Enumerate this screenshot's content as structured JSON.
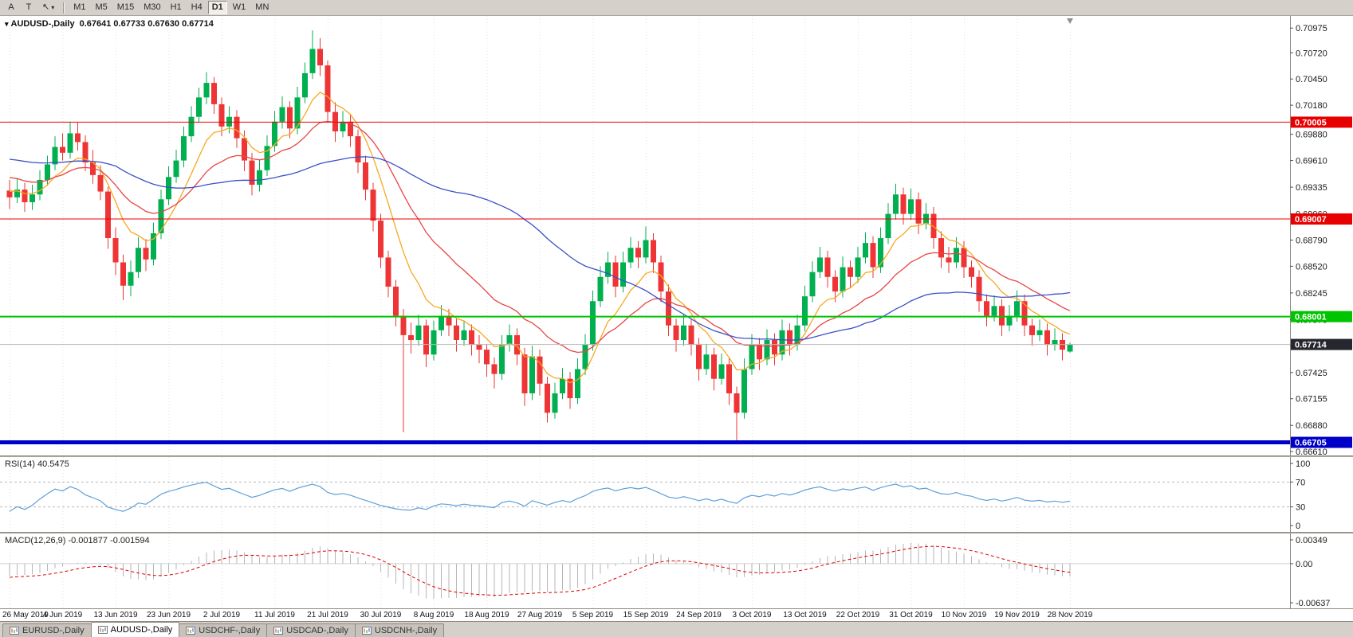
{
  "toolbar": {
    "system_buttons": [
      "A",
      "T"
    ],
    "draw_tool_icon": "↖",
    "dropdown_icon": "▾",
    "timeframes": [
      "M1",
      "M5",
      "M15",
      "M30",
      "H1",
      "H4",
      "D1",
      "W1",
      "MN"
    ],
    "active_timeframe": "D1"
  },
  "chart": {
    "marker_icon": "▾",
    "symbol_label": "AUDUSD-,Daily",
    "quote": "0.67641 0.67733 0.67630 0.67714",
    "shift_marker_icon": "▼"
  },
  "chart_data": {
    "type": "candlestick",
    "symbol": "AUDUSD",
    "timeframe": "Daily",
    "x_tick_every": 7,
    "x_labels": [
      "26 May 2019",
      "4 Jun 2019",
      "13 Jun 2019",
      "23 Jun 2019",
      "2 Jul 2019",
      "11 Jul 2019",
      "21 Jul 2019",
      "30 Jul 2019",
      "8 Aug 2019",
      "18 Aug 2019",
      "27 Aug 2019",
      "5 Sep 2019",
      "15 Sep 2019",
      "24 Sep 2019",
      "3 Oct 2019",
      "13 Oct 2019",
      "22 Oct 2019",
      "31 Oct 2019",
      "10 Nov 2019",
      "19 Nov 2019",
      "28 Nov 2019"
    ],
    "y_range": {
      "top": 0.711,
      "bottom": 0.6657
    },
    "price_axis_labels": [
      "0.70975",
      "0.70720",
      "0.70450",
      "0.70180",
      "0.69880",
      "0.69610",
      "0.69335",
      "0.69060",
      "0.68790",
      "0.68520",
      "0.68245",
      "0.67970",
      "0.67700",
      "0.67425",
      "0.67155",
      "0.66880",
      "0.66610"
    ],
    "up_color": "#00b050",
    "down_color": "#ee3434",
    "grid_color": "#e2e2e2",
    "background": "#ffffff",
    "pre_history_closes": [
      0.7042,
      0.7035,
      0.7028,
      0.7021,
      0.7015,
      0.7008,
      0.7001,
      0.6993,
      0.6986,
      0.698,
      0.6973,
      0.6966,
      0.6959,
      0.6951,
      0.6946,
      0.6952,
      0.6948,
      0.6941,
      0.6936,
      0.6931,
      0.6938,
      0.6931,
      0.6926,
      0.6921,
      0.6928,
      0.6935,
      0.6931,
      0.6927,
      0.6931,
      0.6929
    ],
    "candles": [
      [
        0.693,
        0.6941,
        0.6911,
        0.6923
      ],
      [
        0.6923,
        0.6943,
        0.6917,
        0.6931
      ],
      [
        0.6931,
        0.6938,
        0.6908,
        0.6918
      ],
      [
        0.6918,
        0.6936,
        0.691,
        0.6926
      ],
      [
        0.6926,
        0.6951,
        0.692,
        0.6941
      ],
      [
        0.6941,
        0.6966,
        0.6935,
        0.6957
      ],
      [
        0.6957,
        0.6986,
        0.6951,
        0.6975
      ],
      [
        0.6975,
        0.6989,
        0.6961,
        0.6969
      ],
      [
        0.6969,
        0.7001,
        0.6963,
        0.6989
      ],
      [
        0.6989,
        0.7,
        0.6971,
        0.698
      ],
      [
        0.698,
        0.6987,
        0.695,
        0.6959
      ],
      [
        0.6959,
        0.6972,
        0.6937,
        0.6946
      ],
      [
        0.6946,
        0.6956,
        0.692,
        0.6929
      ],
      [
        0.6929,
        0.6934,
        0.687,
        0.6881
      ],
      [
        0.6881,
        0.6892,
        0.6843,
        0.6856
      ],
      [
        0.6856,
        0.6864,
        0.6817,
        0.6832
      ],
      [
        0.6832,
        0.6858,
        0.6821,
        0.6846
      ],
      [
        0.6846,
        0.6882,
        0.684,
        0.6871
      ],
      [
        0.6871,
        0.688,
        0.6847,
        0.6859
      ],
      [
        0.6859,
        0.6897,
        0.6853,
        0.6886
      ],
      [
        0.6886,
        0.6931,
        0.688,
        0.6921
      ],
      [
        0.6921,
        0.6955,
        0.6915,
        0.6944
      ],
      [
        0.6944,
        0.6972,
        0.6938,
        0.6961
      ],
      [
        0.6961,
        0.6996,
        0.6954,
        0.6986
      ],
      [
        0.6986,
        0.7017,
        0.698,
        0.7006
      ],
      [
        0.7006,
        0.7036,
        0.7,
        0.7026
      ],
      [
        0.7026,
        0.7052,
        0.7019,
        0.7041
      ],
      [
        0.7041,
        0.7047,
        0.7009,
        0.7019
      ],
      [
        0.7019,
        0.7026,
        0.6986,
        0.6996
      ],
      [
        0.6996,
        0.7017,
        0.6989,
        0.7006
      ],
      [
        0.7006,
        0.7013,
        0.6974,
        0.6984
      ],
      [
        0.6984,
        0.6992,
        0.695,
        0.6961
      ],
      [
        0.6961,
        0.6969,
        0.6925,
        0.6936
      ],
      [
        0.6936,
        0.6962,
        0.6929,
        0.6951
      ],
      [
        0.6951,
        0.6987,
        0.6945,
        0.6976
      ],
      [
        0.6976,
        0.7012,
        0.697,
        0.7001
      ],
      [
        0.7001,
        0.7027,
        0.6994,
        0.7016
      ],
      [
        0.7016,
        0.7022,
        0.6984,
        0.6994
      ],
      [
        0.6994,
        0.7037,
        0.6988,
        0.7026
      ],
      [
        0.7026,
        0.7062,
        0.702,
        0.7051
      ],
      [
        0.7051,
        0.7095,
        0.7045,
        0.7076
      ],
      [
        0.7076,
        0.7087,
        0.7048,
        0.7059
      ],
      [
        0.7059,
        0.7064,
        0.7,
        0.7011
      ],
      [
        0.7011,
        0.7021,
        0.698,
        0.6991
      ],
      [
        0.6991,
        0.7012,
        0.6985,
        0.7001
      ],
      [
        0.7001,
        0.7008,
        0.6975,
        0.6986
      ],
      [
        0.6986,
        0.6993,
        0.6948,
        0.6959
      ],
      [
        0.6959,
        0.6966,
        0.692,
        0.6931
      ],
      [
        0.6931,
        0.6938,
        0.6888,
        0.6899
      ],
      [
        0.6899,
        0.6906,
        0.685,
        0.6861
      ],
      [
        0.6861,
        0.6868,
        0.682,
        0.6831
      ],
      [
        0.6831,
        0.6838,
        0.679,
        0.6801
      ],
      [
        0.6801,
        0.6808,
        0.6681,
        0.6781
      ],
      [
        0.6781,
        0.6794,
        0.6762,
        0.6776
      ],
      [
        0.6776,
        0.6802,
        0.677,
        0.6791
      ],
      [
        0.6791,
        0.6797,
        0.6748,
        0.6761
      ],
      [
        0.6761,
        0.6796,
        0.6755,
        0.6786
      ],
      [
        0.6786,
        0.6812,
        0.678,
        0.6801
      ],
      [
        0.6801,
        0.6808,
        0.678,
        0.6791
      ],
      [
        0.6791,
        0.6798,
        0.6764,
        0.6776
      ],
      [
        0.6776,
        0.6796,
        0.677,
        0.6786
      ],
      [
        0.6786,
        0.6792,
        0.676,
        0.6771
      ],
      [
        0.6771,
        0.6781,
        0.6752,
        0.6766
      ],
      [
        0.6766,
        0.6772,
        0.6738,
        0.6751
      ],
      [
        0.6751,
        0.6758,
        0.6726,
        0.6741
      ],
      [
        0.6741,
        0.6781,
        0.6735,
        0.6771
      ],
      [
        0.6771,
        0.6792,
        0.6764,
        0.6781
      ],
      [
        0.6781,
        0.6788,
        0.675,
        0.6761
      ],
      [
        0.6761,
        0.6768,
        0.6708,
        0.6721
      ],
      [
        0.6721,
        0.677,
        0.6714,
        0.6759
      ],
      [
        0.6759,
        0.6766,
        0.6719,
        0.6731
      ],
      [
        0.6731,
        0.6738,
        0.6691,
        0.6701
      ],
      [
        0.6701,
        0.6732,
        0.6695,
        0.6721
      ],
      [
        0.6721,
        0.6747,
        0.6715,
        0.6736
      ],
      [
        0.6736,
        0.6743,
        0.6705,
        0.6716
      ],
      [
        0.6716,
        0.6757,
        0.671,
        0.6746
      ],
      [
        0.6746,
        0.6782,
        0.674,
        0.6771
      ],
      [
        0.6771,
        0.6827,
        0.6765,
        0.6816
      ],
      [
        0.6816,
        0.6852,
        0.681,
        0.6841
      ],
      [
        0.6841,
        0.6867,
        0.6834,
        0.6856
      ],
      [
        0.6856,
        0.6863,
        0.682,
        0.6831
      ],
      [
        0.6831,
        0.6867,
        0.6825,
        0.6856
      ],
      [
        0.6856,
        0.6882,
        0.685,
        0.6871
      ],
      [
        0.6871,
        0.6878,
        0.685,
        0.6861
      ],
      [
        0.6861,
        0.6893,
        0.6855,
        0.6879
      ],
      [
        0.6879,
        0.6886,
        0.6845,
        0.6856
      ],
      [
        0.6856,
        0.6863,
        0.6815,
        0.6826
      ],
      [
        0.6826,
        0.6833,
        0.678,
        0.6791
      ],
      [
        0.6791,
        0.6798,
        0.6764,
        0.6776
      ],
      [
        0.6776,
        0.6802,
        0.677,
        0.6791
      ],
      [
        0.6791,
        0.6798,
        0.676,
        0.6771
      ],
      [
        0.6771,
        0.6778,
        0.6734,
        0.6746
      ],
      [
        0.6746,
        0.6772,
        0.674,
        0.6761
      ],
      [
        0.6761,
        0.6768,
        0.6724,
        0.6736
      ],
      [
        0.6736,
        0.6762,
        0.673,
        0.6751
      ],
      [
        0.6751,
        0.6758,
        0.6709,
        0.6721
      ],
      [
        0.6721,
        0.6728,
        0.66705,
        0.6701
      ],
      [
        0.6701,
        0.6757,
        0.6695,
        0.6746
      ],
      [
        0.6746,
        0.6782,
        0.674,
        0.6771
      ],
      [
        0.6771,
        0.6778,
        0.6745,
        0.6756
      ],
      [
        0.6756,
        0.6787,
        0.675,
        0.6776
      ],
      [
        0.6776,
        0.6783,
        0.675,
        0.6761
      ],
      [
        0.6761,
        0.6797,
        0.6755,
        0.6786
      ],
      [
        0.6786,
        0.6793,
        0.676,
        0.6771
      ],
      [
        0.6771,
        0.6802,
        0.6765,
        0.6791
      ],
      [
        0.6791,
        0.6832,
        0.6785,
        0.6821
      ],
      [
        0.6821,
        0.6857,
        0.6815,
        0.6846
      ],
      [
        0.6846,
        0.6872,
        0.684,
        0.6861
      ],
      [
        0.6861,
        0.6868,
        0.683,
        0.6841
      ],
      [
        0.6841,
        0.6848,
        0.6815,
        0.6826
      ],
      [
        0.6826,
        0.6862,
        0.682,
        0.6851
      ],
      [
        0.6851,
        0.6858,
        0.683,
        0.6841
      ],
      [
        0.6841,
        0.6872,
        0.6835,
        0.6861
      ],
      [
        0.6861,
        0.6887,
        0.6855,
        0.6876
      ],
      [
        0.6876,
        0.6883,
        0.684,
        0.6851
      ],
      [
        0.6851,
        0.6892,
        0.6845,
        0.6881
      ],
      [
        0.6881,
        0.6917,
        0.6875,
        0.6906
      ],
      [
        0.6906,
        0.6937,
        0.69,
        0.6926
      ],
      [
        0.6926,
        0.6933,
        0.6895,
        0.6906
      ],
      [
        0.6906,
        0.6932,
        0.69,
        0.6921
      ],
      [
        0.6921,
        0.6928,
        0.6885,
        0.6896
      ],
      [
        0.6896,
        0.6917,
        0.689,
        0.6906
      ],
      [
        0.6906,
        0.6913,
        0.687,
        0.6881
      ],
      [
        0.6881,
        0.6888,
        0.685,
        0.6861
      ],
      [
        0.6861,
        0.6872,
        0.6845,
        0.6856
      ],
      [
        0.6856,
        0.6882,
        0.685,
        0.6871
      ],
      [
        0.6871,
        0.6878,
        0.684,
        0.6851
      ],
      [
        0.6851,
        0.6858,
        0.683,
        0.6841
      ],
      [
        0.6841,
        0.6848,
        0.6805,
        0.6816
      ],
      [
        0.6816,
        0.6823,
        0.679,
        0.6801
      ],
      [
        0.6801,
        0.6822,
        0.6795,
        0.6811
      ],
      [
        0.6811,
        0.6818,
        0.678,
        0.6791
      ],
      [
        0.6791,
        0.6812,
        0.6785,
        0.6801
      ],
      [
        0.6801,
        0.6827,
        0.6795,
        0.6816
      ],
      [
        0.6816,
        0.6823,
        0.678,
        0.6791
      ],
      [
        0.6791,
        0.6798,
        0.677,
        0.6781
      ],
      [
        0.6781,
        0.6797,
        0.6775,
        0.6786
      ],
      [
        0.6786,
        0.6793,
        0.676,
        0.6771
      ],
      [
        0.6771,
        0.6788,
        0.6765,
        0.6776
      ],
      [
        0.6776,
        0.6783,
        0.6755,
        0.6766
      ],
      [
        0.67641,
        0.67733,
        0.6763,
        0.67714
      ]
    ],
    "moving_averages": [
      {
        "name": "fast",
        "type": "ema",
        "period": 8,
        "color": "#f6a821"
      },
      {
        "name": "medium",
        "type": "ema",
        "period": 20,
        "color": "#e84545"
      },
      {
        "name": "slow",
        "type": "sma",
        "period": 45,
        "color": "#3c50c8"
      }
    ],
    "levels": [
      {
        "label": "0.70005",
        "value": 0.70005,
        "color": "#e80000",
        "width": 1
      },
      {
        "label": "0.69007",
        "value": 0.69007,
        "color": "#e80000",
        "width": 1
      },
      {
        "label": "0.68001",
        "value": 0.68001,
        "color": "#00c400",
        "width": 2
      },
      {
        "label": "0.66705",
        "value": 0.66705,
        "color": "#0000c8",
        "width": 5
      }
    ],
    "current_price": {
      "label": "0.67714",
      "value": 0.67714,
      "line_color": "#b8b8b8",
      "tag_bg": "#26262e"
    },
    "rsi": {
      "label": "RSI(14) 40.5475",
      "period": 14,
      "line_color": "#5f9fd8",
      "level_lines": [
        70,
        30
      ],
      "axis_labels": [
        "100",
        "70",
        "30",
        "0"
      ]
    },
    "macd": {
      "label": "MACD(12,26,9) -0.001877 -0.001594",
      "fast_period": 12,
      "slow_period": 26,
      "signal_period": 9,
      "histogram_color": "#b6b6b6",
      "signal_color": "#e00000",
      "axis_labels": [
        "0.00349",
        "0.00",
        "-0.00637"
      ]
    }
  },
  "tabs": {
    "items": [
      {
        "label": "EURUSD-,Daily"
      },
      {
        "label": "AUDUSD-,Daily"
      },
      {
        "label": "USDCHF-,Daily"
      },
      {
        "label": "USDCAD-,Daily"
      },
      {
        "label": "USDCNH-,Daily"
      }
    ],
    "active_index": 1
  }
}
